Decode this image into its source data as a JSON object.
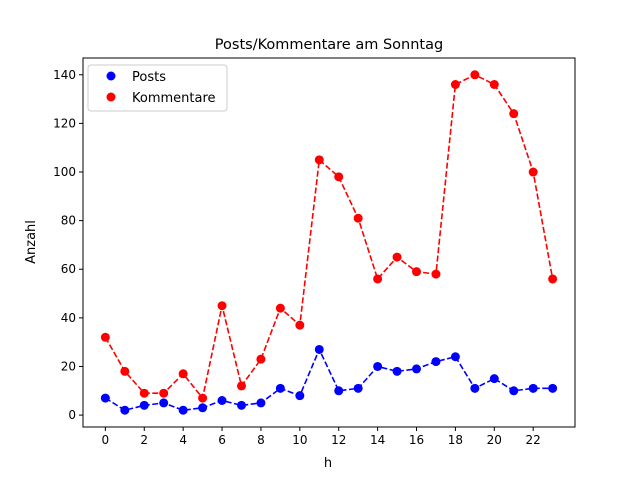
{
  "chart_data": {
    "type": "line",
    "title": "Posts/Kommentare am Sonntag",
    "xlabel": "h",
    "ylabel": "Anzahl",
    "xlim": [
      -1.15,
      24.15
    ],
    "ylim": [
      -4.9,
      146.9
    ],
    "xticks": [
      0,
      2,
      4,
      6,
      8,
      10,
      12,
      14,
      16,
      18,
      20,
      22
    ],
    "yticks": [
      0,
      20,
      40,
      60,
      80,
      100,
      120,
      140
    ],
    "grid": false,
    "legend_placement": "upper-left",
    "x": [
      0,
      1,
      2,
      3,
      4,
      5,
      6,
      7,
      8,
      9,
      10,
      11,
      12,
      13,
      14,
      15,
      16,
      17,
      18,
      19,
      20,
      21,
      22,
      23
    ],
    "series": [
      {
        "name": "Posts",
        "color": "#0000ff",
        "style": "dashed-with-circle-markers",
        "values": [
          7,
          2,
          4,
          5,
          2,
          3,
          6,
          4,
          5,
          11,
          8,
          27,
          10,
          11,
          20,
          18,
          19,
          22,
          24,
          11,
          15,
          10,
          11,
          11
        ]
      },
      {
        "name": "Kommentare",
        "color": "#ff0000",
        "style": "dashed-with-circle-markers",
        "values": [
          32,
          18,
          9,
          9,
          17,
          7,
          45,
          12,
          23,
          44,
          37,
          105,
          98,
          81,
          56,
          65,
          59,
          58,
          136,
          140,
          136,
          124,
          100,
          56
        ]
      }
    ]
  }
}
